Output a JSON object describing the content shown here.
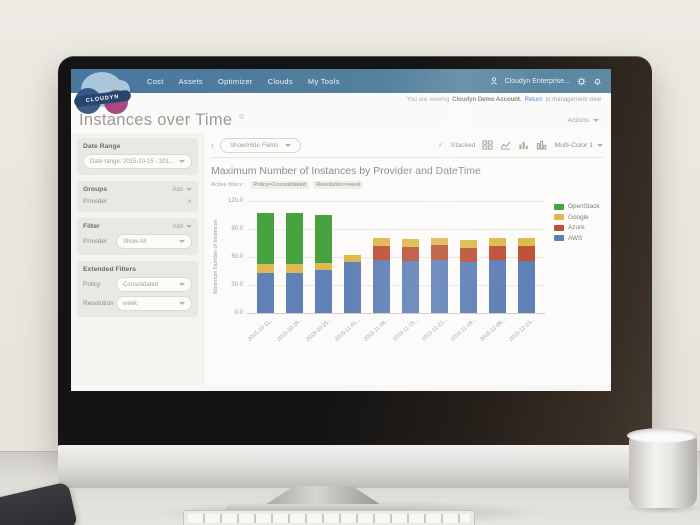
{
  "nav": {
    "items": [
      "Cost",
      "Assets",
      "Optimizer",
      "Clouds",
      "My Tools"
    ],
    "account": "Cloudyn Enterprise...",
    "logo_text": "CLOUDYN"
  },
  "banner": {
    "prefix": "You are viewing",
    "account_bold": "Cloudyn Demo Account.",
    "link": "Return",
    "suffix": "to management view"
  },
  "page": {
    "title": "Instances over Time",
    "actions_label": "Actions"
  },
  "icons": {
    "check": "✓",
    "close": "×",
    "collapse": "‹",
    "title_gear": "⚙"
  },
  "sidebar": {
    "date_range": {
      "title": "Date Range",
      "value": "Date range: 2015-10-15 - 201..."
    },
    "groups": {
      "title": "Groups",
      "add_label": "Add",
      "item": "Provider"
    },
    "filter": {
      "title": "Filter",
      "add_label": "Add",
      "row_label": "Provider",
      "value": "Show All"
    },
    "extended": {
      "title": "Extended Filters",
      "policy_label": "Policy",
      "policy_value": "Consolidated",
      "resolution_label": "Resolution",
      "resolution_value": "week"
    }
  },
  "toolbar": {
    "fields_dropdown": "Show/Hide Fields",
    "stacked_label": "Stacked",
    "color_scheme": "Multi-Color 1"
  },
  "chart": {
    "title": "Maximum Number of Instances by Provider and DateTime",
    "active_filters_label": "Active filters :",
    "filters": [
      "Policy=Consolidated",
      "Resolution=week"
    ]
  },
  "chart_data": {
    "type": "bar",
    "stacked": true,
    "title": "Maximum Number of Instances by Provider and DateTime",
    "xlabel": "",
    "ylabel": "Maximum Number of Instances",
    "ylim": [
      0,
      120
    ],
    "ytick_labels": [
      "120.0",
      "90.0",
      "60.0",
      "30.0",
      "0.0"
    ],
    "grid": true,
    "legend_position": "right",
    "legend_order_top_to_bottom": [
      "OpenStack",
      "Google",
      "Azure",
      "AWS"
    ],
    "categories": [
      "2015-10-11...",
      "2015-10-18...",
      "2015-10-25...",
      "2015-11-01...",
      "2015-11-08...",
      "2015-11-15...",
      "2015-11-22...",
      "2015-11-29...",
      "2015-12-06...",
      "2015-12-13..."
    ],
    "series": [
      {
        "name": "AWS",
        "color": "#6081b7",
        "values": [
          43,
          43,
          46,
          55,
          57,
          56,
          57,
          55,
          57,
          56
        ]
      },
      {
        "name": "Azure",
        "color": "#bd5438",
        "values": [
          0,
          0,
          0,
          0,
          15,
          15,
          16,
          15,
          15,
          16
        ]
      },
      {
        "name": "Google",
        "color": "#deb94f",
        "values": [
          9,
          9,
          8,
          7,
          8,
          8,
          7,
          8,
          8,
          8
        ]
      },
      {
        "name": "OpenStack",
        "color": "#47a33f",
        "values": [
          55,
          55,
          51,
          0,
          0,
          0,
          0,
          0,
          0,
          0
        ]
      }
    ]
  }
}
